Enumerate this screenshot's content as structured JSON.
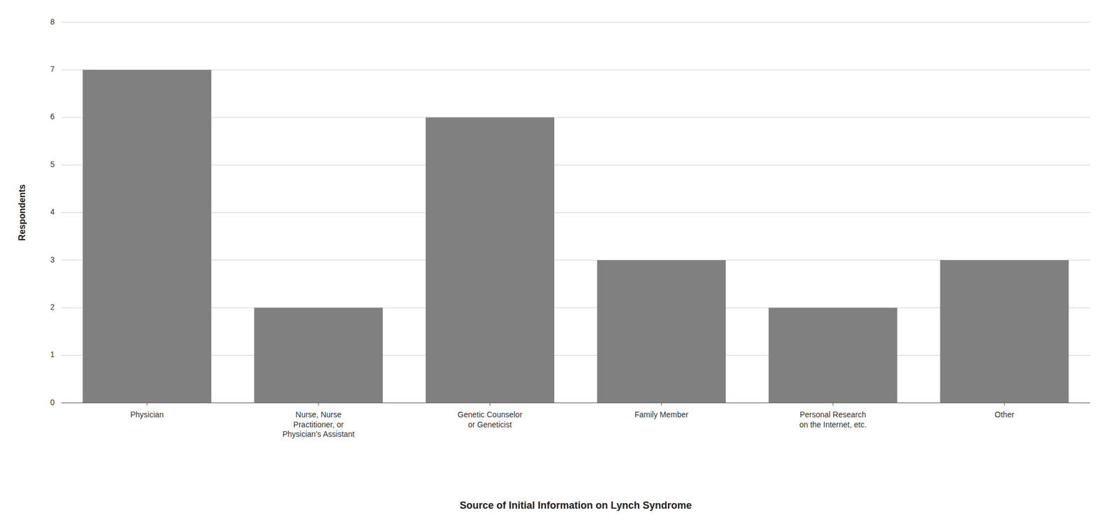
{
  "chart_data": {
    "type": "bar",
    "categories": [
      "Physician",
      "Nurse, Nurse\nPractitioner, or\nPhysician's Assistant",
      "Genetic Counselor\nor Geneticist",
      "Family Member",
      "Personal Research\non the Internet, etc.",
      "Other"
    ],
    "values": [
      7,
      2,
      6,
      3,
      2,
      3
    ],
    "color": "#808080",
    "xlabel": "Source of Initial Information on Lynch Syndrome",
    "ylabel": "Respondents",
    "ylim": [
      0,
      8
    ],
    "yticks": [
      0,
      1,
      2,
      3,
      4,
      5,
      6,
      7,
      8
    ],
    "grid": true
  }
}
